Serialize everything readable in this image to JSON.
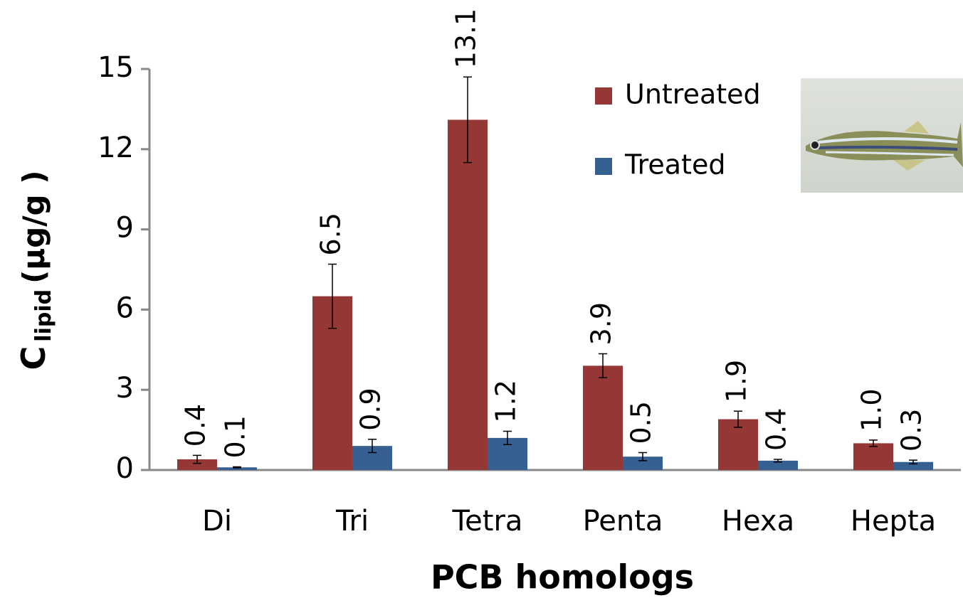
{
  "chart_data": {
    "type": "bar",
    "x_title": "PCB homologs",
    "y_title": {
      "main": "C",
      "subscript": "lipid",
      "unit": "(µg/g )"
    },
    "categories": [
      "Di",
      "Tri",
      "Tetra",
      "Penta",
      "Hexa",
      "Hepta"
    ],
    "series": [
      {
        "name": "Untreated",
        "color": "#953735",
        "values": [
          0.4,
          6.5,
          13.1,
          3.9,
          1.9,
          1.0
        ],
        "value_labels": [
          "0.4",
          "6.5",
          "13.1",
          "3.9",
          "1.9",
          "1.0"
        ],
        "errors": [
          0.15,
          1.2,
          1.6,
          0.45,
          0.3,
          0.12
        ]
      },
      {
        "name": "Treated",
        "color": "#376092",
        "values": [
          0.1,
          0.9,
          1.2,
          0.5,
          0.35,
          0.3
        ],
        "value_labels": [
          "0.1",
          "0.9",
          "1.2",
          "0.5",
          "0.4",
          "0.3"
        ],
        "errors": [
          0.02,
          0.25,
          0.25,
          0.15,
          0.05,
          0.07
        ]
      }
    ],
    "ylim": [
      0,
      15
    ],
    "yticks": [
      0,
      3,
      6,
      9,
      12,
      15
    ],
    "grid": false,
    "legend": "top-right"
  }
}
